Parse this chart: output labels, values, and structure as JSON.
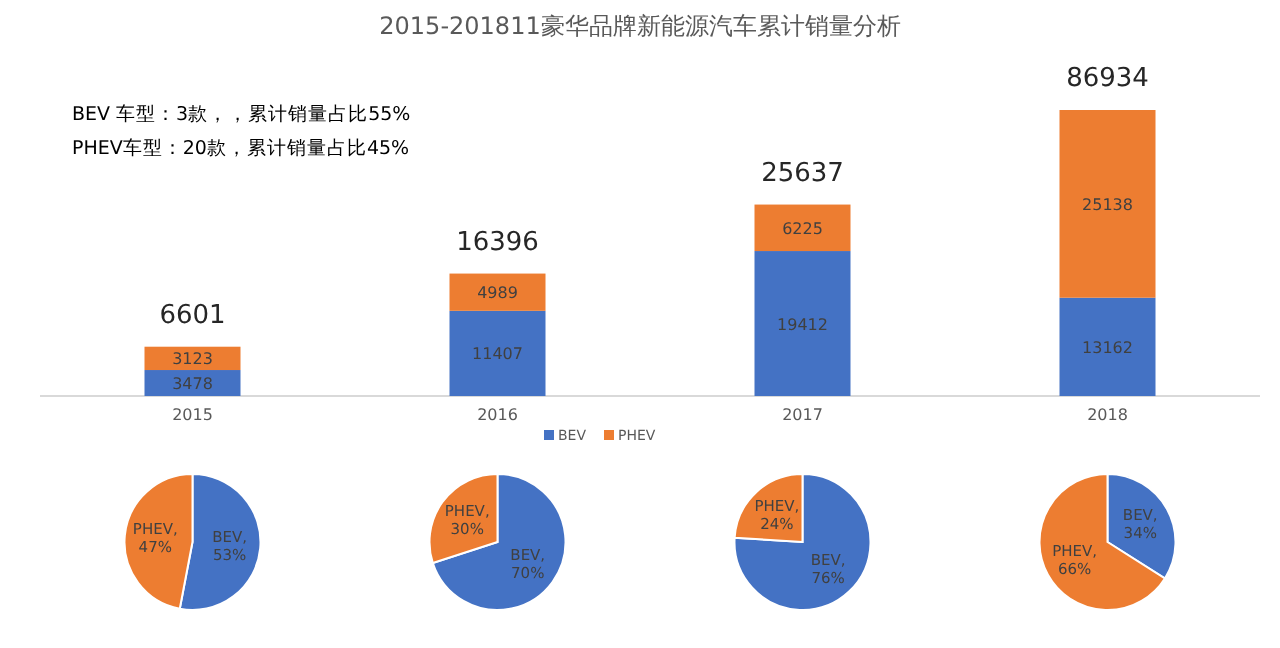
{
  "chart_data": [
    {
      "type": "bar",
      "title": "2015-201811豪华品牌新能源汽车累计销量分析",
      "stacked": true,
      "data_labels": true,
      "legend": "bottom",
      "categories": [
        "2015",
        "2016",
        "2017",
        "2018"
      ],
      "series": [
        {
          "name": "BEV",
          "color": "#4472c4",
          "values": [
            3478,
            11407,
            19412,
            13162
          ]
        },
        {
          "name": "PHEV",
          "color": "#ed7d31",
          "values": [
            3123,
            4989,
            6225,
            25138
          ]
        }
      ],
      "annotations": [
        "BEV 车型：3款，，累计销量占比55%",
        "PHEV车型：20款，累计销量占比45%",
        {
          "text": "6601",
          "x": "2015",
          "y": 6601
        },
        {
          "text": "16396",
          "x": "2016",
          "y": 16396
        },
        {
          "text": "25637",
          "x": "2017",
          "y": 25637
        },
        {
          "text": "86934",
          "x": "2018",
          "y": 38300
        }
      ]
    },
    {
      "type": "pie",
      "categories": [
        "BEV",
        "PHEV"
      ],
      "values": [
        53,
        47
      ],
      "colors": [
        "#4472c4",
        "#ed7d31"
      ],
      "value_labels": [
        ", 53%",
        ", 47%"
      ]
    },
    {
      "type": "pie",
      "categories": [
        "BEV",
        "PHEV"
      ],
      "values": [
        70,
        30
      ],
      "colors": [
        "#4472c4",
        "#ed7d31"
      ],
      "value_labels": [
        ", 70%",
        ", 30%"
      ]
    },
    {
      "type": "pie",
      "categories": [
        "BEV",
        "PHEV"
      ],
      "values": [
        76,
        24
      ],
      "colors": [
        "#4472c4",
        "#ed7d31"
      ],
      "value_labels": [
        ", 76%",
        ", 24%"
      ]
    },
    {
      "type": "pie",
      "categories": [
        "BEV",
        "PHEV"
      ],
      "values": [
        34,
        66
      ],
      "colors": [
        "#4472c4",
        "#ed7d31"
      ],
      "value_labels": [
        ", 34%",
        ", 66%"
      ]
    }
  ]
}
